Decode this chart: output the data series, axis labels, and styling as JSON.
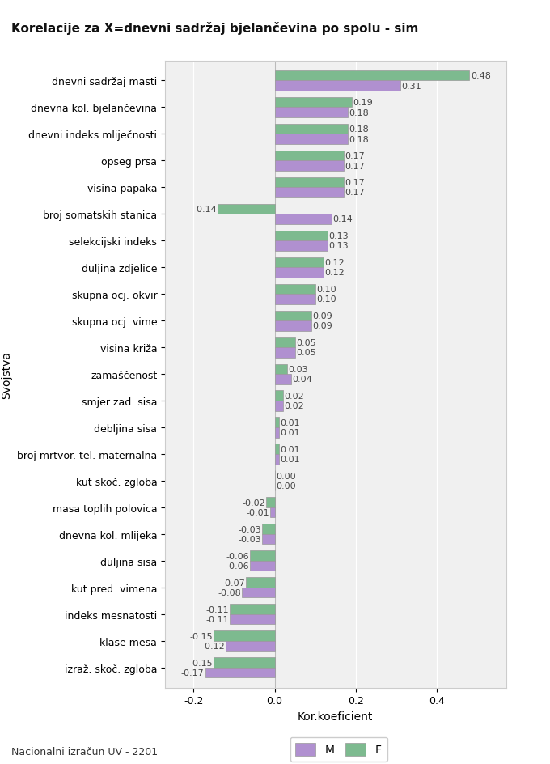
{
  "title": "Korelacije za X=dnevni sadržaj bjelančevina po spolu - sim",
  "xlabel": "Kor.koeficient",
  "ylabel": "Svojstva",
  "footnote": "Nacionalni izračun UV - 2201",
  "categories": [
    "dnevni sadržaj masti",
    "dnevna kol. bjelančevina",
    "dnevni indeks mliječnosti",
    "opseg prsa",
    "visina papaka",
    "broj somatskih stanica",
    "selekcijski indeks",
    "duljina zdjelice",
    "skupna ocj. okvir",
    "skupna ocj. vime",
    "visina križa",
    "zamaščenost",
    "smjer zad. sisa",
    "debljina sisa",
    "broj mrtvor. tel. maternalna",
    "kut skoč. zgloba",
    "masa toplih polovica",
    "dnevna kol. mlijeka",
    "duljina sisa",
    "kut pred. vimena",
    "indeks mesnatosti",
    "klase mesa",
    "izraž. skoč. zgloba"
  ],
  "M_values": [
    0.31,
    0.18,
    0.18,
    0.17,
    0.17,
    0.14,
    0.13,
    0.12,
    0.1,
    0.09,
    0.05,
    0.04,
    0.02,
    0.01,
    0.01,
    0.0,
    -0.01,
    -0.03,
    -0.06,
    -0.08,
    -0.11,
    -0.12,
    -0.17
  ],
  "F_values": [
    0.48,
    0.19,
    0.18,
    0.17,
    0.17,
    -0.14,
    0.13,
    0.12,
    0.1,
    0.09,
    0.05,
    0.03,
    0.02,
    0.01,
    0.01,
    0.0,
    -0.02,
    -0.03,
    -0.06,
    -0.07,
    -0.11,
    -0.15,
    -0.15
  ],
  "M_color": "#b090d0",
  "F_color": "#7dba8f",
  "bg_color": "#ffffff",
  "plot_bg_color": "#f0f0f0",
  "xlim": [
    -0.27,
    0.57
  ],
  "xticks": [
    -0.2,
    0.0,
    0.2,
    0.4
  ],
  "bar_height": 0.38,
  "title_fontsize": 11,
  "axis_label_fontsize": 10,
  "tick_fontsize": 9,
  "value_label_fontsize": 8,
  "footnote_fontsize": 9,
  "legend_fontsize": 10
}
